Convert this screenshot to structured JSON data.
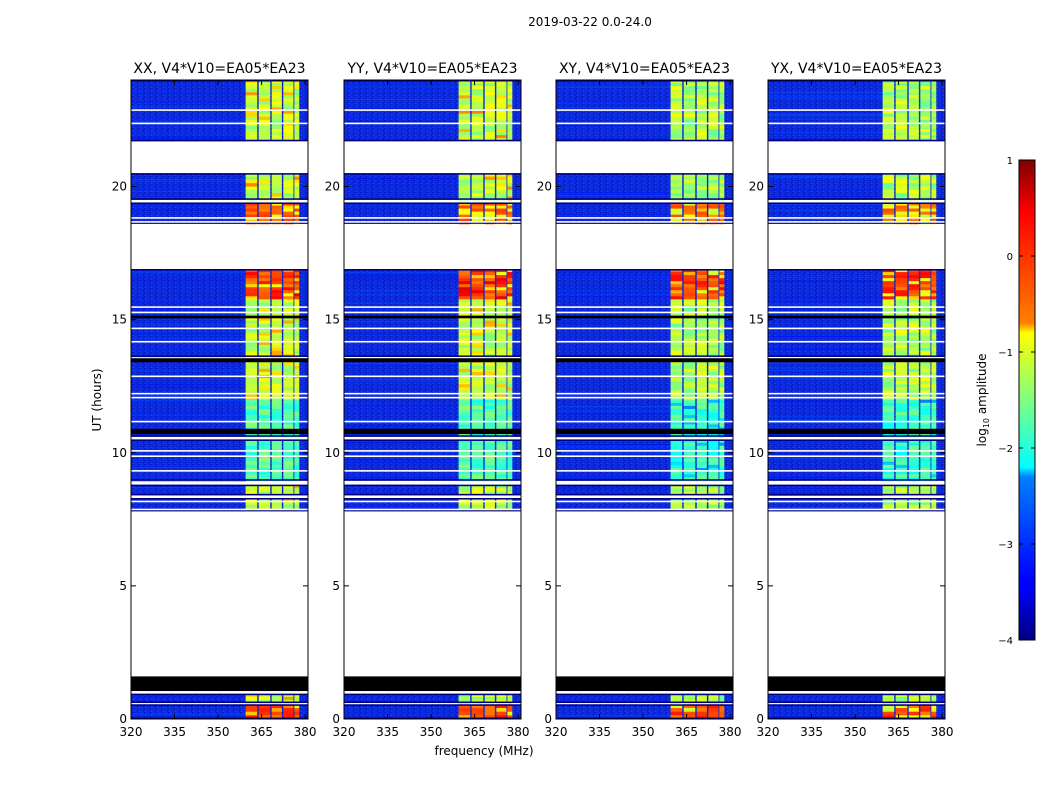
{
  "figure_title": "2019-03-22 0.0-24.0",
  "chart_data": {
    "type": "heatmap",
    "suptitle": "2019-03-22 0.0-24.0",
    "xlabel": "frequency (MHz)",
    "ylabel": "UT (hours)",
    "xlim": [
      320,
      381
    ],
    "ylim": [
      0,
      24
    ],
    "xticks": [
      "320",
      "335",
      "350",
      "365",
      "380"
    ],
    "xtick_values": [
      320,
      335,
      350,
      365,
      380
    ],
    "yticks": [
      "0",
      "5",
      "10",
      "15",
      "20"
    ],
    "ytick_values": [
      0,
      5,
      10,
      15,
      20
    ],
    "panels": [
      {
        "title": "XX, V4*V10=EA05*EA23",
        "polarization": "XX"
      },
      {
        "title": "YY, V4*V10=EA05*EA23",
        "polarization": "YY"
      },
      {
        "title": "XY, V4*V10=EA05*EA23",
        "polarization": "XY"
      },
      {
        "title": "YX, V4*V10=EA05*EA23",
        "polarization": "YX"
      }
    ],
    "rfi_band_mhz": [
      359.5,
      378
    ],
    "colorbar": {
      "label": "log10 amplitude",
      "range": [
        -4,
        1
      ],
      "ticks": [
        "1",
        "0",
        "−1",
        "−2",
        "−3",
        "−4"
      ],
      "tick_values": [
        1,
        0,
        -1,
        -2,
        -3,
        -4
      ],
      "colormap": "jet"
    },
    "time_blocks_ut": [
      [
        0.0,
        0.55
      ],
      [
        0.6,
        0.95
      ],
      [
        7.8,
        8.3
      ],
      [
        8.4,
        8.8
      ],
      [
        8.95,
        10.5
      ],
      [
        10.6,
        13.5
      ],
      [
        13.6,
        16.9
      ],
      [
        18.6,
        19.4
      ],
      [
        19.5,
        20.5
      ],
      [
        21.7,
        24.0
      ]
    ],
    "flagged_black_ut": [
      [
        1.05,
        1.6
      ],
      [
        10.7,
        10.9
      ],
      [
        13.4,
        13.55
      ],
      [
        15.05,
        15.15
      ]
    ]
  },
  "colors": {
    "low": "#00007f",
    "high": "#7f0000",
    "axis": "#000000"
  }
}
